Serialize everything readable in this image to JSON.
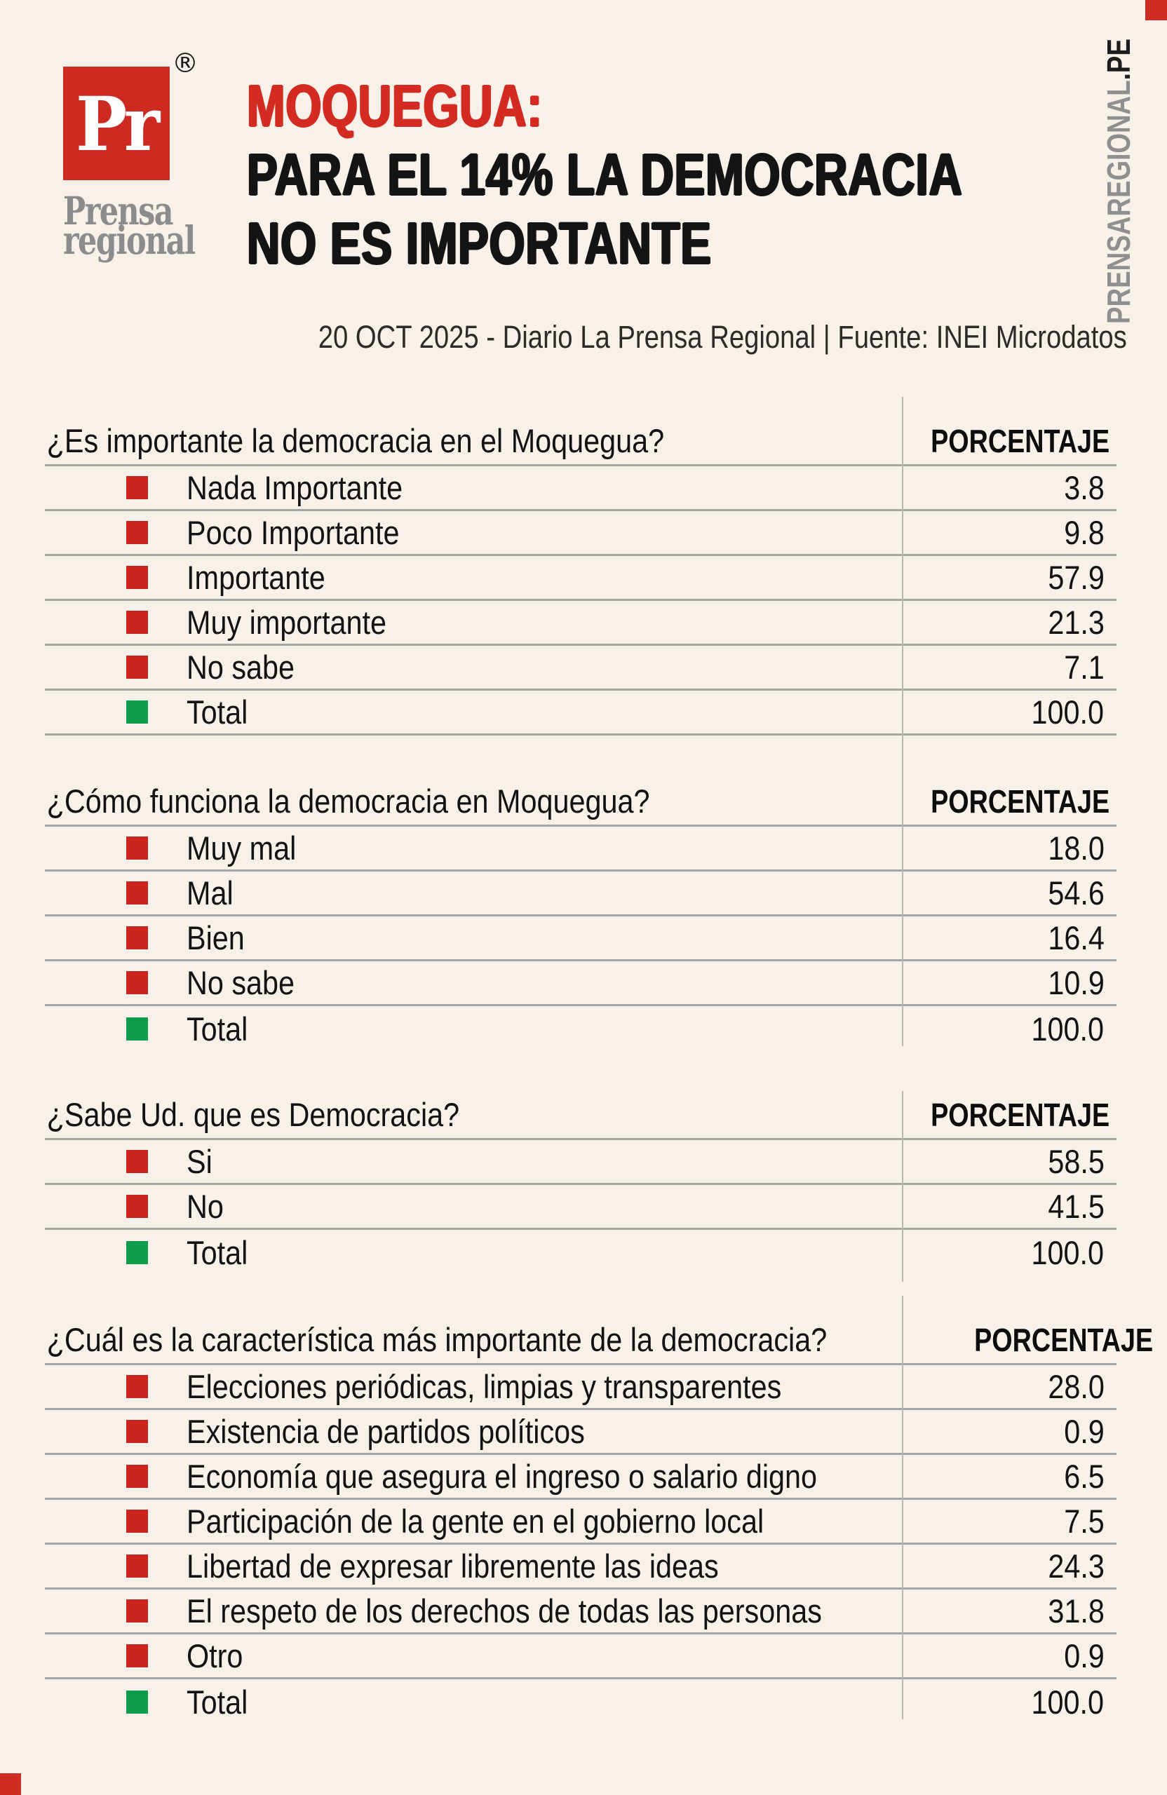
{
  "page": {
    "background": "#f7f1ea",
    "accent_red": "#d32b22",
    "bullet_red": "#cb241e",
    "bullet_green": "#0d9b4c",
    "rule_gray": "#a5a5a5"
  },
  "logo": {
    "monogram": "Pr",
    "registered_mark": "®",
    "name_line1": "Prensa",
    "name_line2": "regional"
  },
  "header": {
    "title_line1": "MOQUEGUA:",
    "title_line2": "PARA EL 14% LA DEMOCRACIA",
    "title_line3": "NO ES IMPORTANTE",
    "subtitle": "20 OCT 2025 - Diario La Prensa Regional | Fuente: INEI Microdatos"
  },
  "site_vertical": {
    "gray_part": "PRENSAREGIONAL",
    "black_part": ".PE"
  },
  "chart_data": [
    {
      "type": "table",
      "question": "¿Es importante la democracia en el Moquegua?",
      "value_header": "PORCENTAJE",
      "rows": [
        {
          "label": "Nada Importante",
          "value": "3.8",
          "bullet": "red"
        },
        {
          "label": "Poco Importante",
          "value": "9.8",
          "bullet": "red"
        },
        {
          "label": "Importante",
          "value": "57.9",
          "bullet": "red"
        },
        {
          "label": "Muy importante",
          "value": "21.3",
          "bullet": "red"
        },
        {
          "label": "No sabe",
          "value": "7.1",
          "bullet": "red"
        },
        {
          "label": "Total",
          "value": "100.0",
          "bullet": "green"
        }
      ]
    },
    {
      "type": "table",
      "question": "¿Cómo funciona la democracia en Moquegua?",
      "value_header": "PORCENTAJE",
      "rows": [
        {
          "label": "Muy mal",
          "value": "18.0",
          "bullet": "red"
        },
        {
          "label": "Mal",
          "value": "54.6",
          "bullet": "red"
        },
        {
          "label": "Bien",
          "value": "16.4",
          "bullet": "red"
        },
        {
          "label": "No sabe",
          "value": "10.9",
          "bullet": "red"
        },
        {
          "label": "Total",
          "value": "100.0",
          "bullet": "green"
        }
      ]
    },
    {
      "type": "table",
      "question": "¿Sabe Ud. que es Democracia?",
      "value_header": "PORCENTAJE",
      "rows": [
        {
          "label": "Si",
          "value": "58.5",
          "bullet": "red"
        },
        {
          "label": "No",
          "value": "41.5",
          "bullet": "red"
        },
        {
          "label": "Total",
          "value": "100.0",
          "bullet": "green"
        }
      ]
    },
    {
      "type": "table",
      "question": "¿Cuál es la característica más importante de la democracia?",
      "value_header": "PORCENTAJE",
      "rows": [
        {
          "label": "Elecciones periódicas, limpias y transparentes",
          "value": "28.0",
          "bullet": "red"
        },
        {
          "label": "Existencia de partidos políticos",
          "value": "0.9",
          "bullet": "red"
        },
        {
          "label": "Economía que asegura el ingreso o salario digno",
          "value": "6.5",
          "bullet": "red"
        },
        {
          "label": "Participación de la gente en el gobierno local",
          "value": "7.5",
          "bullet": "red"
        },
        {
          "label": "Libertad de expresar libremente las ideas",
          "value": "24.3",
          "bullet": "red"
        },
        {
          "label": "El respeto de los derechos de todas las personas",
          "value": "31.8",
          "bullet": "red"
        },
        {
          "label": "Otro",
          "value": "0.9",
          "bullet": "red"
        },
        {
          "label": "Total",
          "value": "100.0",
          "bullet": "green"
        }
      ]
    }
  ]
}
